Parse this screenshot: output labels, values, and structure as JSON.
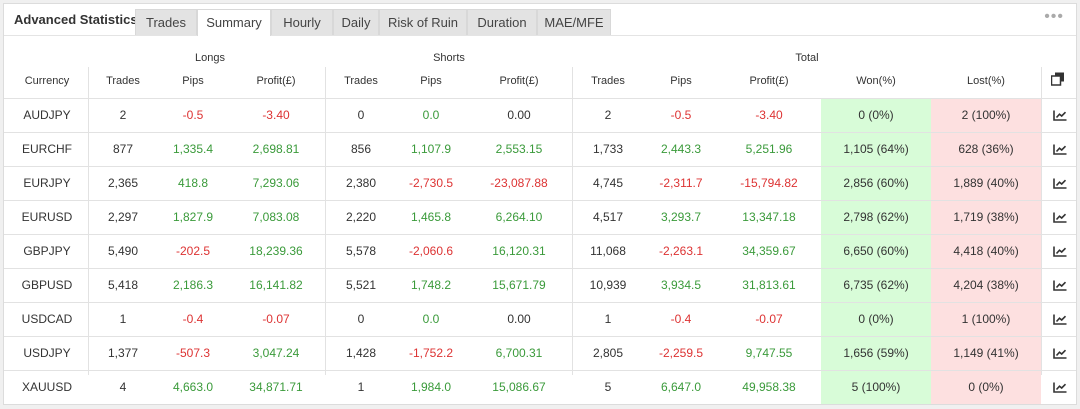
{
  "title": "Advanced Statistics",
  "tabs": [
    {
      "label": "Trades",
      "active": false
    },
    {
      "label": "Summary",
      "active": true
    },
    {
      "label": "Hourly",
      "active": false
    },
    {
      "label": "Daily",
      "active": false
    },
    {
      "label": "Risk of Ruin",
      "active": false
    },
    {
      "label": "Duration",
      "active": false
    },
    {
      "label": "MAE/MFE",
      "active": false
    }
  ],
  "more_icon": "•••",
  "groups": {
    "longs": "Longs",
    "shorts": "Shorts",
    "total": "Total"
  },
  "columns": {
    "currency": "Currency",
    "trades": "Trades",
    "pips": "Pips",
    "profit": "Profit(£)",
    "won": "Won(%)",
    "lost": "Lost(%)"
  },
  "copy_icon": "copy-icon",
  "row_icon": "chart-icon",
  "colors": {
    "positive": "#3a9a3a",
    "negative": "#dd3333",
    "won_bg": "#d8fcd8",
    "lost_bg": "#fde0e0"
  },
  "rows": [
    {
      "currency": "AUDJPY",
      "l_trades": "2",
      "l_pips": "-0.5",
      "l_profit": "-3.40",
      "s_trades": "0",
      "s_pips": "0.0",
      "s_profit": "0.00",
      "t_trades": "2",
      "t_pips": "-0.5",
      "t_profit": "-3.40",
      "won": "0 (0%)",
      "lost": "2 (100%)"
    },
    {
      "currency": "EURCHF",
      "l_trades": "877",
      "l_pips": "1,335.4",
      "l_profit": "2,698.81",
      "s_trades": "856",
      "s_pips": "1,107.9",
      "s_profit": "2,553.15",
      "t_trades": "1,733",
      "t_pips": "2,443.3",
      "t_profit": "5,251.96",
      "won": "1,105 (64%)",
      "lost": "628 (36%)"
    },
    {
      "currency": "EURJPY",
      "l_trades": "2,365",
      "l_pips": "418.8",
      "l_profit": "7,293.06",
      "s_trades": "2,380",
      "s_pips": "-2,730.5",
      "s_profit": "-23,087.88",
      "t_trades": "4,745",
      "t_pips": "-2,311.7",
      "t_profit": "-15,794.82",
      "won": "2,856 (60%)",
      "lost": "1,889 (40%)"
    },
    {
      "currency": "EURUSD",
      "l_trades": "2,297",
      "l_pips": "1,827.9",
      "l_profit": "7,083.08",
      "s_trades": "2,220",
      "s_pips": "1,465.8",
      "s_profit": "6,264.10",
      "t_trades": "4,517",
      "t_pips": "3,293.7",
      "t_profit": "13,347.18",
      "won": "2,798 (62%)",
      "lost": "1,719 (38%)"
    },
    {
      "currency": "GBPJPY",
      "l_trades": "5,490",
      "l_pips": "-202.5",
      "l_profit": "18,239.36",
      "s_trades": "5,578",
      "s_pips": "-2,060.6",
      "s_profit": "16,120.31",
      "t_trades": "11,068",
      "t_pips": "-2,263.1",
      "t_profit": "34,359.67",
      "won": "6,650 (60%)",
      "lost": "4,418 (40%)"
    },
    {
      "currency": "GBPUSD",
      "l_trades": "5,418",
      "l_pips": "2,186.3",
      "l_profit": "16,141.82",
      "s_trades": "5,521",
      "s_pips": "1,748.2",
      "s_profit": "15,671.79",
      "t_trades": "10,939",
      "t_pips": "3,934.5",
      "t_profit": "31,813.61",
      "won": "6,735 (62%)",
      "lost": "4,204 (38%)"
    },
    {
      "currency": "USDCAD",
      "l_trades": "1",
      "l_pips": "-0.4",
      "l_profit": "-0.07",
      "s_trades": "0",
      "s_pips": "0.0",
      "s_profit": "0.00",
      "t_trades": "1",
      "t_pips": "-0.4",
      "t_profit": "-0.07",
      "won": "0 (0%)",
      "lost": "1 (100%)"
    },
    {
      "currency": "USDJPY",
      "l_trades": "1,377",
      "l_pips": "-507.3",
      "l_profit": "3,047.24",
      "s_trades": "1,428",
      "s_pips": "-1,752.2",
      "s_profit": "6,700.31",
      "t_trades": "2,805",
      "t_pips": "-2,259.5",
      "t_profit": "9,747.55",
      "won": "1,656 (59%)",
      "lost": "1,149 (41%)"
    },
    {
      "currency": "XAUUSD",
      "l_trades": "4",
      "l_pips": "4,663.0",
      "l_profit": "34,871.71",
      "s_trades": "1",
      "s_pips": "1,984.0",
      "s_profit": "15,086.67",
      "t_trades": "5",
      "t_pips": "6,647.0",
      "t_profit": "49,958.38",
      "won": "5 (100%)",
      "lost": "0 (0%)"
    }
  ]
}
